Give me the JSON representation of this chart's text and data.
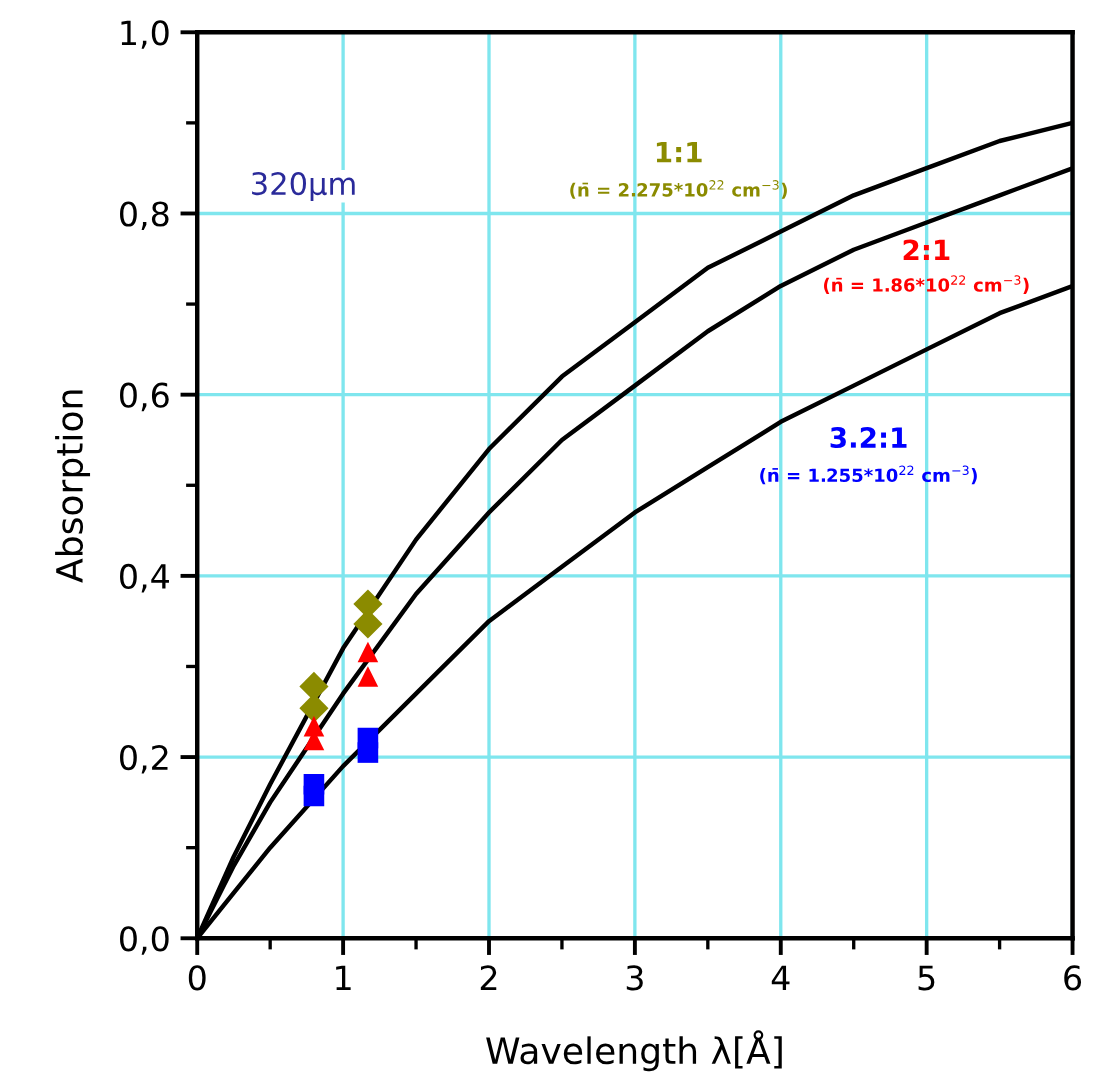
{
  "chart_data": {
    "type": "line",
    "xlabel": "Wavelength λ[Å]",
    "ylabel": "Absorption",
    "xlim": [
      0,
      6
    ],
    "ylim": [
      0,
      1.0
    ],
    "xticks": [
      0,
      1,
      2,
      3,
      4,
      5,
      6
    ],
    "yticks": [
      {
        "value": 0,
        "label": "0,0"
      },
      {
        "value": 0.2,
        "label": "0,2"
      },
      {
        "value": 0.4,
        "label": "0,4"
      },
      {
        "value": 0.6,
        "label": "0,6"
      },
      {
        "value": 0.8,
        "label": "0,8"
      },
      {
        "value": 1.0,
        "label": "1,0"
      }
    ],
    "grid": true,
    "marker": "none",
    "line_style": "solid",
    "series": [
      {
        "color": "#000000",
        "x": [
          0,
          0.25,
          0.5,
          1,
          1.5,
          2,
          2.5,
          3,
          3.5,
          4,
          4.5,
          5,
          5.5,
          6
        ],
        "values": [
          0,
          0.09,
          0.17,
          0.32,
          0.44,
          0.54,
          0.62,
          0.68,
          0.74,
          0.78,
          0.82,
          0.85,
          0.88,
          0.9
        ]
      },
      {
        "color": "#000000",
        "x": [
          0,
          0.25,
          0.5,
          1,
          1.5,
          2,
          2.5,
          3,
          3.5,
          4,
          4.5,
          5,
          5.5,
          6
        ],
        "values": [
          0,
          0.08,
          0.15,
          0.27,
          0.38,
          0.47,
          0.55,
          0.61,
          0.67,
          0.72,
          0.76,
          0.79,
          0.82,
          0.85
        ]
      },
      {
        "color": "#000000",
        "x": [
          0,
          0.25,
          0.5,
          1,
          1.5,
          2,
          2.5,
          3,
          3.5,
          4,
          4.5,
          5,
          5.5,
          6
        ],
        "values": [
          0,
          0.05,
          0.1,
          0.19,
          0.27,
          0.35,
          0.41,
          0.47,
          0.52,
          0.57,
          0.61,
          0.65,
          0.69,
          0.72
        ]
      },
      {
        "type": "scatter",
        "marker": "diamond",
        "color": "#8b8b00",
        "x": [
          0.8,
          0.8,
          1.17,
          1.17
        ],
        "values": [
          0.278,
          0.254,
          0.369,
          0.347
        ]
      },
      {
        "type": "scatter",
        "marker": "triangle",
        "color": "#ff0000",
        "x": [
          0.8,
          0.8,
          1.17,
          1.17
        ],
        "values": [
          0.234,
          0.219,
          0.316,
          0.289
        ]
      },
      {
        "type": "scatter",
        "marker": "square",
        "color": "#0000ff",
        "x": [
          0.8,
          0.8,
          1.17,
          1.17
        ],
        "values": [
          0.17,
          0.157,
          0.221,
          0.205
        ]
      }
    ],
    "annotations": [
      "1:1",
      "(n̄ = 2.275*10$^{22}$ cm$^{−3}$)",
      "2:1",
      "(n̄ = 1.86*10$^{22}$ cm$^{−3}$)",
      "3.2:1",
      "(n̄ = 1.255*10$^{22}$ cm$^{−3}$)",
      "320μm"
    ]
  }
}
